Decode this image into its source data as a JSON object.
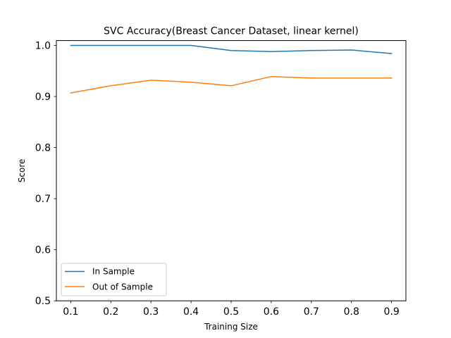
{
  "chart_data": {
    "type": "line",
    "title": "SVC Accuracy(Breast Cancer Dataset, linear kernel)",
    "xlabel": "Training Size",
    "ylabel": "Score",
    "x": [
      0.1,
      0.2,
      0.3,
      0.4,
      0.5,
      0.6,
      0.7,
      0.8,
      0.9
    ],
    "xticks": [
      "0.1",
      "0.2",
      "0.3",
      "0.4",
      "0.5",
      "0.6",
      "0.7",
      "0.8",
      "0.9"
    ],
    "yticks": [
      "0.5",
      "0.6",
      "0.7",
      "0.8",
      "0.9",
      "1.0"
    ],
    "xlim": [
      0.0643,
      0.9357
    ],
    "ylim": [
      0.5,
      1.0095
    ],
    "grid": false,
    "legend_position": "lower-left",
    "series": [
      {
        "name": "In Sample",
        "color": "#1f77b4",
        "values": [
          1.0,
          1.0,
          1.0,
          1.0,
          0.99,
          0.988,
          0.99,
          0.991,
          0.984
        ]
      },
      {
        "name": "Out of Sample",
        "color": "#ff7f0e",
        "values": [
          0.907,
          0.921,
          0.932,
          0.928,
          0.921,
          0.939,
          0.936,
          0.936,
          0.936
        ]
      }
    ]
  }
}
